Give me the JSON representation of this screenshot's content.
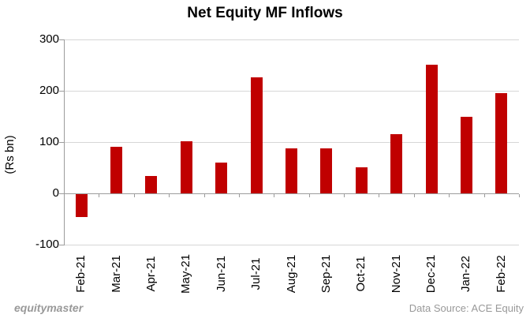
{
  "title": "Net Equity MF Inflows",
  "footer": {
    "brand": "equitymaster",
    "source": "Data Source: ACE Equity"
  },
  "chart_data": {
    "type": "bar",
    "title": "Net Equity MF Inflows",
    "xlabel": "",
    "ylabel": "(Rs bn)",
    "categories": [
      "Feb-21",
      "Mar-21",
      "Apr-21",
      "May-21",
      "Jun-21",
      "Jul-21",
      "Aug-21",
      "Sep-21",
      "Oct-21",
      "Nov-21",
      "Dec-21",
      "Jan-22",
      "Feb-22"
    ],
    "values": [
      -45,
      91,
      34,
      101,
      60,
      226,
      87,
      87,
      51,
      115,
      251,
      150,
      195
    ],
    "ylim": [
      -100,
      300
    ],
    "yticks": [
      300,
      200,
      100,
      0,
      -100
    ],
    "grid": true,
    "legend": false,
    "bar_color": "#C00000",
    "gridline_color": "#D6D6D6",
    "axis_color": "#9C9C9C"
  }
}
